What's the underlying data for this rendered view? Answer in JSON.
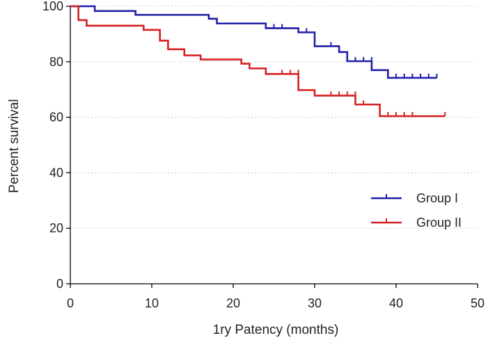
{
  "chart_data": {
    "type": "line",
    "subtype": "kaplan-meier-step",
    "xlabel": "1ry Patency (months)",
    "ylabel": "Percent survival",
    "xlim": [
      0,
      50
    ],
    "ylim": [
      0,
      100
    ],
    "x_ticks": [
      "0",
      "10",
      "20",
      "30",
      "40",
      "50"
    ],
    "y_ticks": [
      "0",
      "20",
      "40",
      "60",
      "80",
      "100"
    ],
    "grid": "horizontal dotted",
    "legend_position": "right",
    "series": [
      {
        "name": "Group I",
        "color": "#1f1fa8",
        "steps": [
          [
            0,
            100
          ],
          [
            3,
            98.3
          ],
          [
            8,
            96.9
          ],
          [
            17,
            95.5
          ],
          [
            18,
            93.8
          ],
          [
            24,
            92.1
          ],
          [
            28,
            90.6
          ],
          [
            30,
            85.6
          ],
          [
            33,
            83.5
          ],
          [
            34,
            80.2
          ],
          [
            37,
            77.0
          ],
          [
            39,
            74.2
          ],
          [
            45,
            74.2
          ]
        ],
        "censored": [
          [
            25,
            92.1
          ],
          [
            26,
            92.1
          ],
          [
            28,
            90.6
          ],
          [
            29,
            90.6
          ],
          [
            32,
            85.6
          ],
          [
            35,
            80.2
          ],
          [
            36,
            80.2
          ],
          [
            37,
            80.2
          ],
          [
            40,
            74.2
          ],
          [
            41,
            74.2
          ],
          [
            42,
            74.2
          ],
          [
            43,
            74.2
          ],
          [
            44,
            74.2
          ],
          [
            45,
            74.2
          ]
        ]
      },
      {
        "name": "Group II",
        "color": "#d61f1f",
        "steps": [
          [
            0,
            100
          ],
          [
            1,
            95.0
          ],
          [
            2,
            93.0
          ],
          [
            9,
            91.5
          ],
          [
            11,
            87.6
          ],
          [
            12,
            84.5
          ],
          [
            14,
            82.3
          ],
          [
            16,
            80.8
          ],
          [
            21,
            79.3
          ],
          [
            22,
            77.6
          ],
          [
            24,
            75.6
          ],
          [
            28,
            69.8
          ],
          [
            30,
            67.8
          ],
          [
            35,
            64.6
          ],
          [
            37,
            64.6
          ],
          [
            38,
            60.4
          ],
          [
            46,
            60.4
          ]
        ],
        "censored": [
          [
            26,
            75.6
          ],
          [
            27,
            75.6
          ],
          [
            28,
            75.6
          ],
          [
            32,
            67.8
          ],
          [
            33,
            67.8
          ],
          [
            34,
            67.8
          ],
          [
            35,
            67.8
          ],
          [
            36,
            64.6
          ],
          [
            39,
            60.4
          ],
          [
            40,
            60.4
          ],
          [
            41,
            60.4
          ],
          [
            42,
            60.4
          ],
          [
            46,
            60.4
          ]
        ]
      }
    ]
  }
}
